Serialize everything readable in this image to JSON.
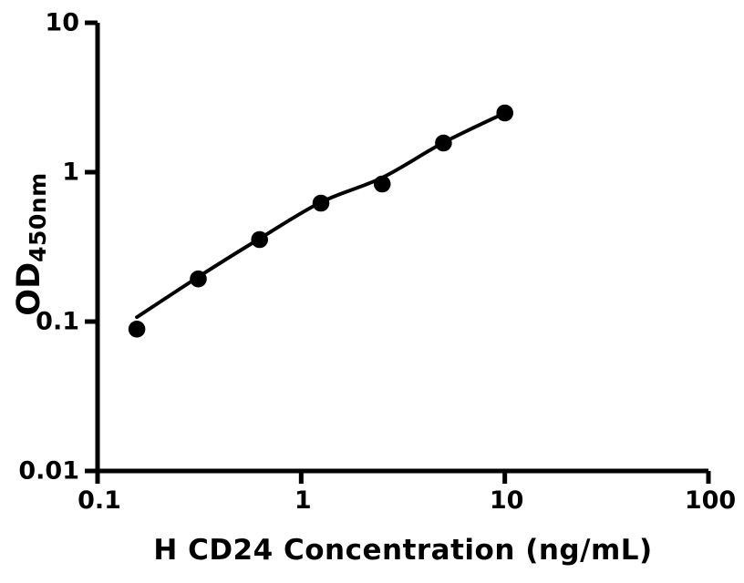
{
  "chart_data": {
    "type": "scatter",
    "title": "",
    "xlabel": "H CD24 Concentration (ng/mL)",
    "ylabel": "OD450nm",
    "ylabel_main": "OD",
    "ylabel_sub": "450nm",
    "x_scale": "log",
    "y_scale": "log",
    "xlim": [
      0.1,
      100
    ],
    "ylim": [
      0.01,
      10
    ],
    "grid": false,
    "legend": "none",
    "x_ticks": [
      {
        "value": 0.1,
        "label": "0.1"
      },
      {
        "value": 1,
        "label": "1"
      },
      {
        "value": 10,
        "label": "10"
      },
      {
        "value": 100,
        "label": "100"
      }
    ],
    "y_ticks": [
      {
        "value": 0.01,
        "label": "0.01"
      },
      {
        "value": 0.1,
        "label": "0.1"
      },
      {
        "value": 1,
        "label": "1"
      },
      {
        "value": 10,
        "label": "10"
      }
    ],
    "series": [
      {
        "name": "standard-points",
        "type": "scatter",
        "marker": "filled-circle",
        "x": [
          0.156,
          0.3125,
          0.625,
          1.25,
          2.5,
          5,
          10
        ],
        "y": [
          0.089,
          0.193,
          0.354,
          0.62,
          0.833,
          1.567,
          2.49
        ]
      },
      {
        "name": "fit-curve",
        "type": "line",
        "x": [
          0.156,
          0.3125,
          0.625,
          1.25,
          2.5,
          5,
          10
        ],
        "y": [
          0.107,
          0.199,
          0.359,
          0.629,
          0.919,
          1.578,
          2.49
        ]
      }
    ],
    "colors": {
      "points": "#000000",
      "line": "#000000",
      "axis": "#000000",
      "text": "#000000",
      "background": "#ffffff"
    }
  }
}
